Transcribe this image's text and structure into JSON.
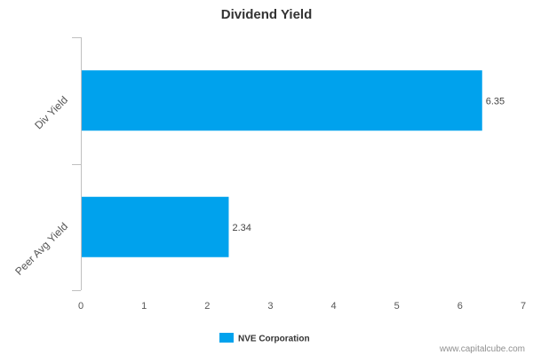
{
  "chart_data": {
    "type": "bar",
    "orientation": "horizontal",
    "title": "Dividend Yield",
    "categories": [
      "Div Yield",
      "Peer Avg Yield"
    ],
    "series": [
      {
        "name": "NVE Corporation",
        "values": [
          6.35,
          2.34
        ],
        "labels": [
          "6.35",
          "2.34"
        ]
      }
    ],
    "xlim": [
      0,
      7
    ],
    "xticks": [
      "0",
      "1",
      "2",
      "3",
      "4",
      "5",
      "6",
      "7"
    ],
    "grid": false,
    "legend_position": "bottom-center",
    "bar_color": "#00a2ed"
  },
  "credit": "www.capitalcube.com"
}
